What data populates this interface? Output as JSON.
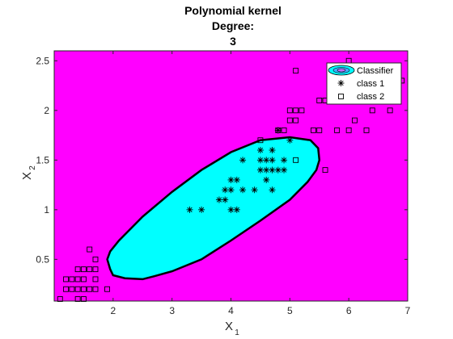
{
  "chart_data": {
    "type": "scatter",
    "title_lines": [
      "Polynomial kernel",
      "Degree:",
      "3"
    ],
    "xlabel": "X",
    "xlabel_sub": "1",
    "ylabel": "X",
    "ylabel_sub": "2",
    "xlim": [
      1.0,
      7.0
    ],
    "ylim": [
      0.08,
      2.6
    ],
    "xticks": [
      2,
      3,
      4,
      5,
      6,
      7
    ],
    "yticks": [
      0.5,
      1,
      1.5,
      2,
      2.5
    ],
    "background_color": "#ff00ff",
    "region_color": "#00ffff",
    "boundary_color": "#000000",
    "grid": false,
    "legend_position": "top-right",
    "legend": [
      "Classifier",
      "class 1",
      "class 2"
    ],
    "decision_boundary": [
      [
        1.9,
        0.5
      ],
      [
        1.95,
        0.4
      ],
      [
        2.0,
        0.34
      ],
      [
        2.2,
        0.31
      ],
      [
        2.5,
        0.3
      ],
      [
        2.7,
        0.33
      ],
      [
        3.0,
        0.38
      ],
      [
        3.5,
        0.5
      ],
      [
        4.0,
        0.69
      ],
      [
        4.5,
        0.89
      ],
      [
        5.0,
        1.1
      ],
      [
        5.3,
        1.28
      ],
      [
        5.45,
        1.4
      ],
      [
        5.5,
        1.5
      ],
      [
        5.48,
        1.62
      ],
      [
        5.35,
        1.7
      ],
      [
        5.0,
        1.73
      ],
      [
        4.5,
        1.7
      ],
      [
        4.0,
        1.58
      ],
      [
        3.5,
        1.4
      ],
      [
        3.0,
        1.18
      ],
      [
        2.5,
        0.93
      ],
      [
        2.1,
        0.69
      ],
      [
        1.95,
        0.58
      ]
    ],
    "series": [
      {
        "name": "class 1",
        "marker": "asterisk",
        "points": [
          [
            3.3,
            1.0
          ],
          [
            3.5,
            1.0
          ],
          [
            3.8,
            1.1
          ],
          [
            3.9,
            1.1
          ],
          [
            3.9,
            1.2
          ],
          [
            4.0,
            1.2
          ],
          [
            4.0,
            1.0
          ],
          [
            4.1,
            1.0
          ],
          [
            4.0,
            1.3
          ],
          [
            4.1,
            1.3
          ],
          [
            4.2,
            1.2
          ],
          [
            4.2,
            1.5
          ],
          [
            4.4,
            1.2
          ],
          [
            4.5,
            1.4
          ],
          [
            4.5,
            1.5
          ],
          [
            4.5,
            1.6
          ],
          [
            4.6,
            1.4
          ],
          [
            4.6,
            1.5
          ],
          [
            4.6,
            1.3
          ],
          [
            4.7,
            1.2
          ],
          [
            4.7,
            1.4
          ],
          [
            4.7,
            1.5
          ],
          [
            4.7,
            1.6
          ],
          [
            4.8,
            1.4
          ],
          [
            4.8,
            1.8
          ],
          [
            4.9,
            1.5
          ],
          [
            4.9,
            1.4
          ],
          [
            5.0,
            1.7
          ]
        ]
      },
      {
        "name": "class 2",
        "marker": "square",
        "points": [
          [
            1.1,
            0.1
          ],
          [
            1.2,
            0.2
          ],
          [
            1.2,
            0.3
          ],
          [
            1.3,
            0.2
          ],
          [
            1.3,
            0.3
          ],
          [
            1.4,
            0.1
          ],
          [
            1.4,
            0.2
          ],
          [
            1.4,
            0.3
          ],
          [
            1.4,
            0.4
          ],
          [
            1.5,
            0.1
          ],
          [
            1.5,
            0.2
          ],
          [
            1.5,
            0.3
          ],
          [
            1.5,
            0.4
          ],
          [
            1.6,
            0.2
          ],
          [
            1.6,
            0.4
          ],
          [
            1.6,
            0.6
          ],
          [
            1.7,
            0.2
          ],
          [
            1.7,
            0.3
          ],
          [
            1.7,
            0.4
          ],
          [
            1.7,
            0.5
          ],
          [
            1.9,
            0.2
          ],
          [
            4.5,
            1.7
          ],
          [
            4.8,
            1.8
          ],
          [
            4.9,
            1.8
          ],
          [
            5.0,
            1.9
          ],
          [
            5.0,
            2.0
          ],
          [
            5.1,
            1.5
          ],
          [
            5.1,
            1.9
          ],
          [
            5.1,
            2.0
          ],
          [
            5.2,
            2.0
          ],
          [
            5.1,
            2.4
          ],
          [
            5.4,
            1.8
          ],
          [
            5.5,
            1.8
          ],
          [
            5.6,
            1.4
          ],
          [
            5.5,
            2.1
          ],
          [
            5.6,
            2.1
          ],
          [
            5.7,
            2.1
          ],
          [
            5.8,
            1.8
          ],
          [
            5.8,
            2.2
          ],
          [
            5.9,
            2.3
          ],
          [
            6.0,
            1.8
          ],
          [
            6.0,
            2.5
          ],
          [
            6.1,
            1.9
          ],
          [
            6.1,
            2.3
          ],
          [
            6.3,
            1.8
          ],
          [
            6.4,
            2.0
          ],
          [
            6.4,
            2.3
          ],
          [
            6.7,
            2.0
          ],
          [
            6.9,
            2.3
          ]
        ]
      }
    ]
  }
}
